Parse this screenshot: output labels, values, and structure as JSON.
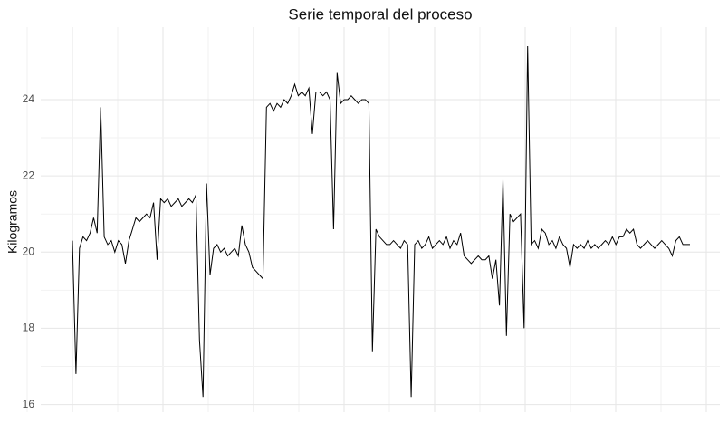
{
  "chart_data": {
    "type": "line",
    "title": "Serie temporal del proceso",
    "y_label": "Kilogramos",
    "series": [
      {
        "color": "#000000",
        "values": [
          20.3,
          16.8,
          20.1,
          20.4,
          20.3,
          20.5,
          20.9,
          20.5,
          23.8,
          20.4,
          20.2,
          20.3,
          20.0,
          20.3,
          20.2,
          19.7,
          20.3,
          20.6,
          20.9,
          20.8,
          20.9,
          21.0,
          20.9,
          21.3,
          19.8,
          21.4,
          21.3,
          21.4,
          21.2,
          21.3,
          21.4,
          21.2,
          21.3,
          21.4,
          21.3,
          21.5,
          17.7,
          16.2,
          21.8,
          19.4,
          20.1,
          20.2,
          20.0,
          20.1,
          19.9,
          20.0,
          20.1,
          19.9,
          20.7,
          20.2,
          20.0,
          19.6,
          19.5,
          19.4,
          19.3,
          23.8,
          23.9,
          23.7,
          23.9,
          23.8,
          24.0,
          23.9,
          24.1,
          24.4,
          24.1,
          24.2,
          24.1,
          24.3,
          23.1,
          24.2,
          24.2,
          24.1,
          24.2,
          24.0,
          20.6,
          24.7,
          23.9,
          24.0,
          24.0,
          24.1,
          24.0,
          23.9,
          24.0,
          24.0,
          23.9,
          17.4,
          20.6,
          20.4,
          20.3,
          20.2,
          20.2,
          20.3,
          20.2,
          20.1,
          20.3,
          20.2,
          16.2,
          20.2,
          20.3,
          20.1,
          20.2,
          20.4,
          20.1,
          20.2,
          20.3,
          20.2,
          20.4,
          20.1,
          20.3,
          20.2,
          20.5,
          19.9,
          19.8,
          19.7,
          19.8,
          19.9,
          19.8,
          19.8,
          19.9,
          19.3,
          19.8,
          18.6,
          21.9,
          17.8,
          21.0,
          20.8,
          20.9,
          21.0,
          18.0,
          25.4,
          20.2,
          20.3,
          20.1,
          20.6,
          20.5,
          20.2,
          20.3,
          20.1,
          20.4,
          20.2,
          20.1,
          19.6,
          20.2,
          20.1,
          20.2,
          20.1,
          20.3,
          20.1,
          20.2,
          20.1,
          20.2,
          20.3,
          20.2,
          20.4,
          20.2,
          20.4,
          20.4,
          20.6,
          20.5,
          20.6,
          20.2,
          20.1,
          20.2,
          20.3,
          20.2,
          20.1,
          20.2,
          20.3,
          20.2,
          20.1,
          19.9,
          20.3,
          20.4,
          20.2,
          20.2,
          20.2
        ]
      }
    ],
    "ylim": [
      15.8,
      25.9
    ],
    "yticks": [
      16,
      18,
      20,
      22,
      24
    ],
    "grid": true
  }
}
